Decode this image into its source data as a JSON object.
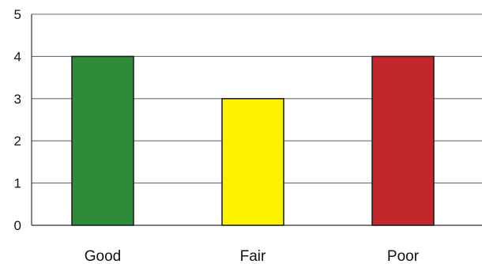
{
  "chart_data": {
    "type": "bar",
    "title": "",
    "xlabel": "",
    "ylabel": "",
    "categories": [
      "Good",
      "Fair",
      "Poor"
    ],
    "values": [
      4,
      3,
      4
    ],
    "colors": [
      "#2e8b3a",
      "#fff200",
      "#c1272d"
    ],
    "ylim": [
      0,
      5
    ],
    "yticks": [
      "0",
      "1",
      "2",
      "3",
      "4",
      "5"
    ],
    "grid": true,
    "legend": "none"
  }
}
